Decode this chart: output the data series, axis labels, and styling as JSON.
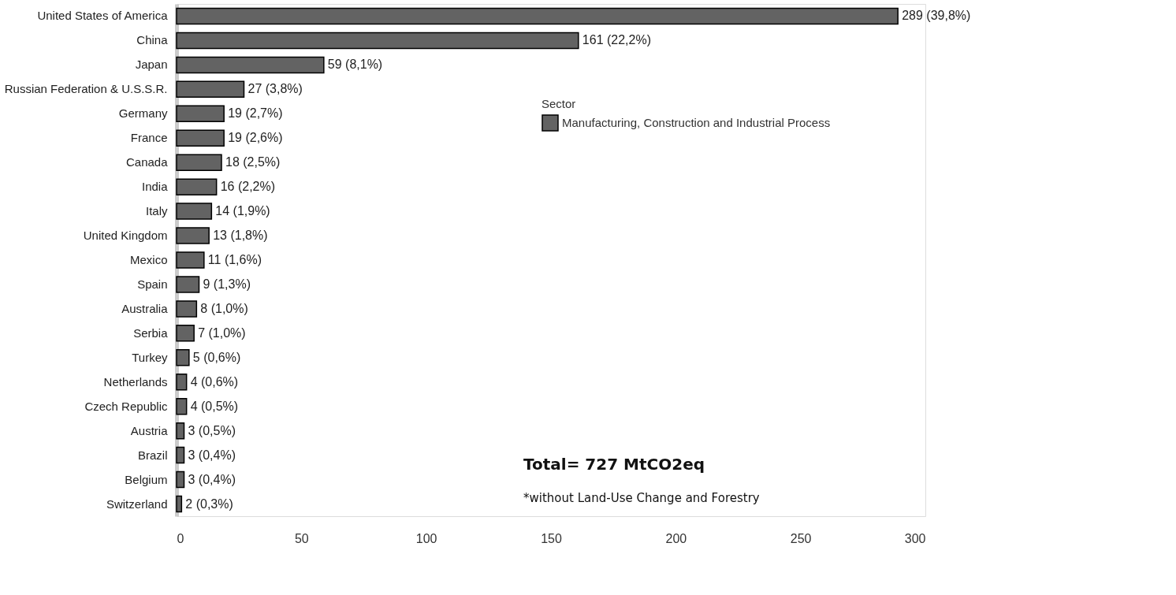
{
  "chart_data": {
    "type": "bar",
    "orientation": "horizontal",
    "categories": [
      "United States of America",
      "China",
      "Japan",
      "Russian Federation & U.S.S.R.",
      "Germany",
      "France",
      "Canada",
      "India",
      "Italy",
      "United Kingdom",
      "Mexico",
      "Spain",
      "Australia",
      "Serbia",
      "Turkey",
      "Netherlands",
      "Czech Republic",
      "Austria",
      "Brazil",
      "Belgium",
      "Switzerland"
    ],
    "series": [
      {
        "name": "Manufacturing, Construction and Industrial Process",
        "color": "#636363",
        "values": [
          289,
          161,
          59,
          27,
          19,
          19,
          18,
          16,
          14,
          13,
          11,
          9,
          8,
          7,
          5,
          4,
          4,
          3,
          3,
          3,
          2
        ]
      }
    ],
    "value_labels": [
      "289 (39,8%)",
      "161 (22,2%)",
      "59 (8,1%)",
      "27 (3,8%)",
      "19 (2,7%)",
      "19 (2,6%)",
      "18 (2,5%)",
      "16 (2,2%)",
      "14 (1,9%)",
      "13 (1,8%)",
      "11 (1,6%)",
      "9 (1,3%)",
      "8 (1,0%)",
      "7 (1,0%)",
      "5 (0,6%)",
      "4 (0,6%)",
      "4 (0,5%)",
      "3 (0,5%)",
      "3 (0,4%)",
      "3 (0,4%)",
      "2 (0,3%)"
    ],
    "xlim": [
      0,
      300
    ],
    "xticks": [
      0,
      50,
      100,
      150,
      200,
      250,
      300
    ],
    "legend_title": "Sector",
    "legend": "top right",
    "grid": false,
    "annotations": [
      "Total= 727 MtCO2eq",
      "*without Land-Use Change and Forestry"
    ]
  }
}
